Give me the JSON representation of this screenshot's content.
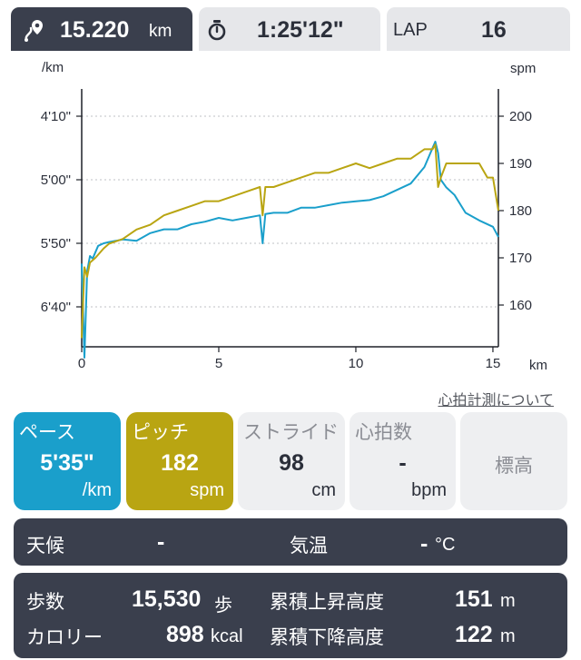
{
  "tabs": {
    "distance": {
      "value": "15.220",
      "unit": "km",
      "icon": "route-pin-icon"
    },
    "time": {
      "value": "1:25'12\"",
      "icon": "stopwatch-icon"
    },
    "lap": {
      "label": "LAP",
      "value": "16"
    }
  },
  "chart_data": {
    "type": "line",
    "xlabel": "km",
    "xlim": [
      0,
      15.2
    ],
    "xticks": [
      "0",
      "5",
      "10",
      "15"
    ],
    "y_left": {
      "label": "/km",
      "ticks": [
        "4'10\"",
        "5'00\"",
        "5'50\"",
        "6'40\""
      ],
      "tick_seconds": [
        250,
        300,
        350,
        400
      ],
      "inverted": true
    },
    "y_right": {
      "label": "spm",
      "ticks": [
        "200",
        "190",
        "180",
        "170",
        "160"
      ],
      "tick_values": [
        200,
        190,
        180,
        170,
        160
      ]
    },
    "grid": true,
    "series": [
      {
        "color": "#1a9fcb",
        "axis": "left",
        "x": [
          0,
          0.1,
          0.2,
          0.3,
          0.4,
          0.6,
          0.8,
          1.0,
          1.5,
          2.0,
          2.5,
          3.0,
          3.5,
          4.0,
          4.5,
          5.0,
          5.5,
          6.0,
          6.5,
          6.6,
          6.7,
          7.0,
          7.5,
          8.0,
          8.5,
          9.0,
          9.5,
          10.0,
          10.5,
          11.0,
          11.5,
          12.0,
          12.5,
          12.8,
          12.9,
          13.0,
          13.1,
          13.3,
          13.6,
          14.0,
          14.5,
          15.0,
          15.2
        ],
        "values": [
          366,
          440,
          372,
          360,
          362,
          352,
          350,
          349,
          347,
          348,
          342,
          339,
          339,
          335,
          333,
          330,
          332,
          330,
          328,
          350,
          327,
          326,
          326,
          322,
          322,
          320,
          318,
          317,
          316,
          313,
          308,
          303,
          290,
          275,
          270,
          279,
          300,
          306,
          312,
          326,
          332,
          337,
          345
        ],
        "name": ""
      },
      {
        "color": "#b9a512",
        "axis": "right",
        "x": [
          0,
          0.1,
          0.2,
          0.3,
          0.5,
          0.8,
          1.0,
          1.5,
          2.0,
          2.5,
          3.0,
          3.5,
          4.0,
          4.5,
          5.0,
          5.5,
          6.0,
          6.5,
          6.6,
          6.7,
          7.0,
          7.5,
          8.0,
          8.5,
          9.0,
          9.5,
          10.0,
          10.5,
          11.0,
          11.5,
          12.0,
          12.5,
          12.8,
          12.9,
          13.0,
          13.1,
          13.3,
          13.6,
          14.0,
          14.5,
          14.8,
          15.0,
          15.2
        ],
        "values": [
          153,
          168,
          166,
          169,
          170,
          172,
          173,
          174,
          176,
          177,
          179,
          180,
          181,
          182,
          182,
          183,
          184,
          185,
          179,
          185,
          185,
          186,
          187,
          188,
          188,
          189,
          190,
          189,
          190,
          191,
          191,
          193,
          193,
          194,
          185,
          187,
          190,
          190,
          190,
          190,
          187,
          187,
          180
        ],
        "name": ""
      }
    ]
  },
  "note_link": "心拍計測について",
  "cards": {
    "pace": {
      "label": "ペース",
      "value": "5'35\"",
      "unit": "/km"
    },
    "pitch": {
      "label": "ピッチ",
      "value": "182",
      "unit": "spm"
    },
    "stride": {
      "label": "ストライド",
      "value": "98",
      "unit": "cm"
    },
    "heart_rate": {
      "label": "心拍数",
      "value": "-",
      "unit": "bpm"
    },
    "elevation": {
      "label": "標高"
    }
  },
  "weather_panel": {
    "weather_label": "天候",
    "weather_value": "-",
    "temp_label": "気温",
    "temp_value": "-",
    "temp_unit": "°C"
  },
  "stats_panel": {
    "steps_label": "歩数",
    "steps_value": "15,530",
    "steps_unit": "歩",
    "calories_label": "カロリー",
    "calories_value": "898",
    "calories_unit": "kcal",
    "ascent_label": "累積上昇高度",
    "ascent_value": "151",
    "ascent_unit": "m",
    "descent_label": "累積下降高度",
    "descent_value": "122",
    "descent_unit": "m"
  }
}
